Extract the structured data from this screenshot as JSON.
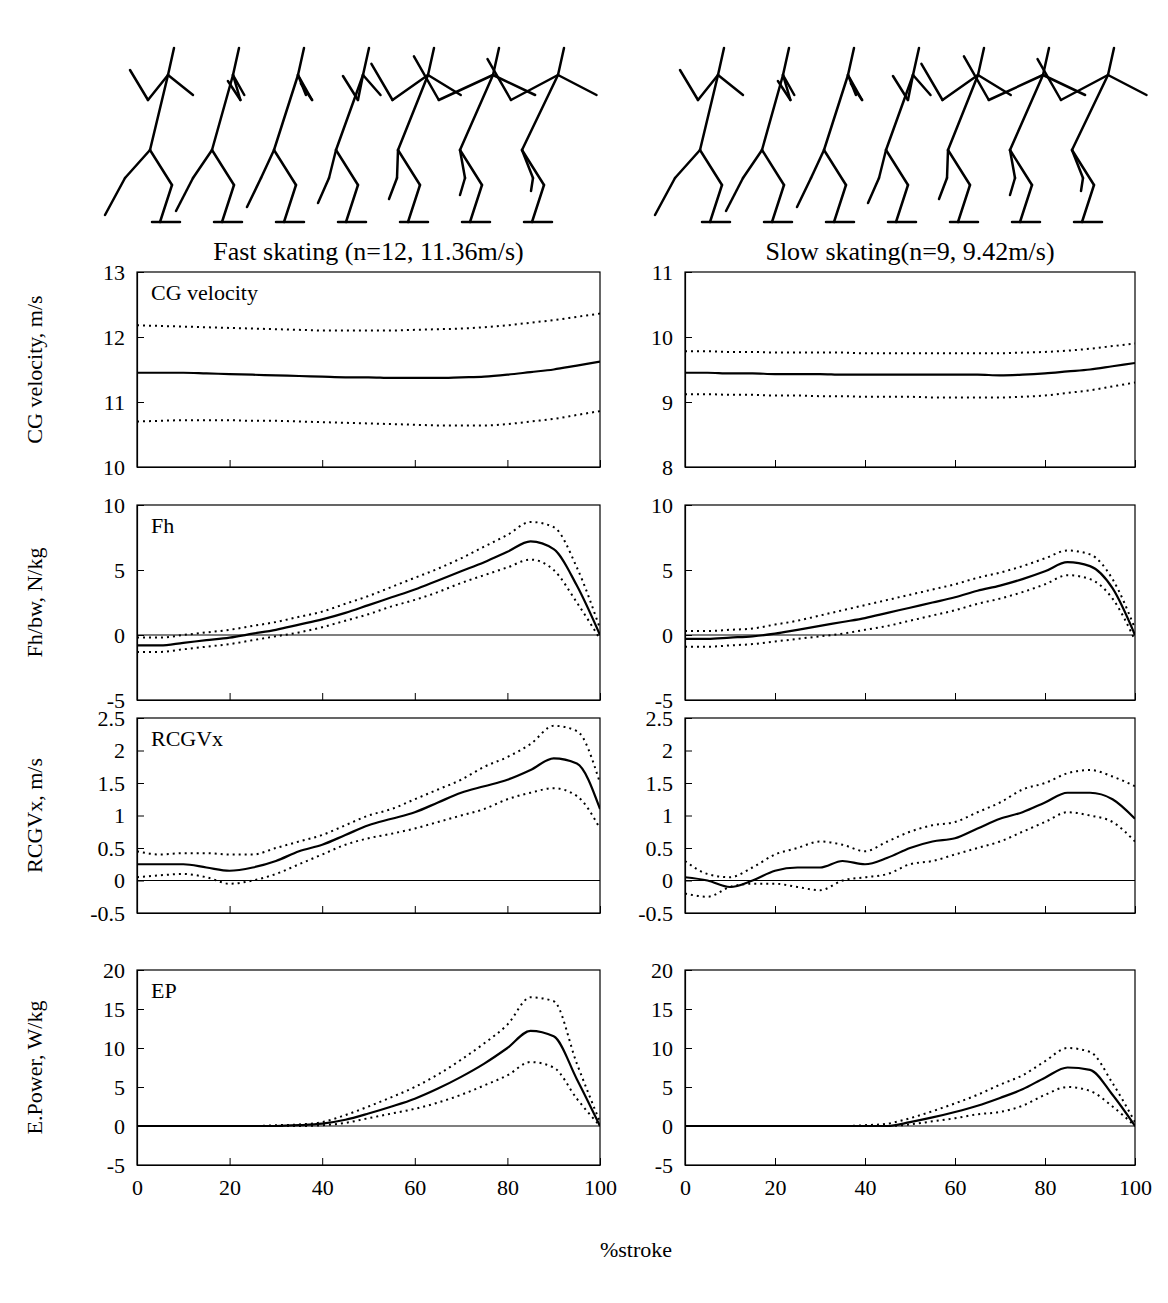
{
  "chart_data": [
    {
      "type": "line",
      "title": "Fast skating (n=12, 11.36m/s)",
      "ylabel": "CG velocity, m/s",
      "panel_label": "CG velocity",
      "x": [
        0,
        5,
        10,
        15,
        20,
        25,
        30,
        35,
        40,
        45,
        50,
        55,
        60,
        65,
        70,
        75,
        80,
        85,
        90,
        95,
        100
      ],
      "series": [
        {
          "color": "#000000",
          "line_style": "solid",
          "values": [
            11.45,
            11.45,
            11.45,
            11.44,
            11.43,
            11.42,
            11.41,
            11.4,
            11.39,
            11.38,
            11.38,
            11.37,
            11.37,
            11.37,
            11.38,
            11.39,
            11.42,
            11.46,
            11.5,
            11.56,
            11.62
          ]
        },
        {
          "color": "#000000",
          "line_style": "dotted",
          "values": [
            12.18,
            12.17,
            12.16,
            12.15,
            12.14,
            12.13,
            12.12,
            12.11,
            12.1,
            12.1,
            12.1,
            12.1,
            12.11,
            12.12,
            12.13,
            12.15,
            12.18,
            12.22,
            12.26,
            12.31,
            12.36
          ]
        },
        {
          "color": "#000000",
          "line_style": "dotted",
          "values": [
            10.7,
            10.71,
            10.72,
            10.72,
            10.72,
            10.71,
            10.71,
            10.7,
            10.69,
            10.68,
            10.67,
            10.66,
            10.65,
            10.64,
            10.64,
            10.64,
            10.66,
            10.7,
            10.74,
            10.8,
            10.86
          ]
        }
      ],
      "xlim": [
        0,
        100
      ],
      "xticks": [
        0,
        20,
        40,
        60,
        80,
        100
      ],
      "ylim": [
        10,
        13
      ],
      "yticks": [
        10,
        11,
        12,
        13
      ],
      "tick_labels": "y"
    },
    {
      "type": "line",
      "title": "Slow skating(n=9, 9.42m/s)",
      "x": [
        0,
        5,
        10,
        15,
        20,
        25,
        30,
        35,
        40,
        45,
        50,
        55,
        60,
        65,
        70,
        75,
        80,
        85,
        90,
        95,
        100
      ],
      "series": [
        {
          "color": "#000000",
          "line_style": "solid",
          "values": [
            9.45,
            9.45,
            9.44,
            9.44,
            9.43,
            9.43,
            9.43,
            9.42,
            9.42,
            9.42,
            9.42,
            9.42,
            9.42,
            9.42,
            9.41,
            9.42,
            9.44,
            9.47,
            9.5,
            9.55,
            9.6
          ]
        },
        {
          "color": "#000000",
          "line_style": "dotted",
          "values": [
            9.78,
            9.78,
            9.77,
            9.77,
            9.76,
            9.76,
            9.76,
            9.76,
            9.75,
            9.75,
            9.75,
            9.75,
            9.75,
            9.75,
            9.75,
            9.76,
            9.77,
            9.79,
            9.82,
            9.86,
            9.9
          ]
        },
        {
          "color": "#000000",
          "line_style": "dotted",
          "values": [
            9.12,
            9.12,
            9.11,
            9.11,
            9.1,
            9.1,
            9.09,
            9.09,
            9.08,
            9.08,
            9.08,
            9.07,
            9.07,
            9.07,
            9.07,
            9.08,
            9.1,
            9.14,
            9.18,
            9.24,
            9.3
          ]
        }
      ],
      "xlim": [
        0,
        100
      ],
      "xticks": [
        0,
        20,
        40,
        60,
        80,
        100
      ],
      "ylim": [
        8,
        11
      ],
      "yticks": [
        8,
        9,
        10,
        11
      ],
      "tick_labels": "y"
    },
    {
      "type": "line",
      "ylabel": "Fh/bw, N/kg",
      "panel_label": "Fh",
      "x": [
        0,
        5,
        10,
        15,
        20,
        25,
        30,
        35,
        40,
        45,
        50,
        55,
        60,
        65,
        70,
        75,
        80,
        85,
        90,
        95,
        100
      ],
      "series": [
        {
          "color": "#000000",
          "line_style": "solid",
          "values": [
            -0.8,
            -0.8,
            -0.6,
            -0.4,
            -0.2,
            0.1,
            0.4,
            0.8,
            1.2,
            1.7,
            2.3,
            2.9,
            3.5,
            4.2,
            4.9,
            5.6,
            6.4,
            7.2,
            6.6,
            3.8,
            0
          ]
        },
        {
          "color": "#000000",
          "line_style": "dotted",
          "values": [
            -0.2,
            -0.2,
            0,
            0.2,
            0.4,
            0.7,
            1.0,
            1.4,
            1.8,
            2.4,
            3.0,
            3.7,
            4.4,
            5.1,
            5.9,
            6.8,
            7.7,
            8.7,
            8.3,
            5.2,
            0.5
          ]
        },
        {
          "color": "#000000",
          "line_style": "dotted",
          "values": [
            -1.3,
            -1.3,
            -1.1,
            -0.9,
            -0.7,
            -0.4,
            -0.1,
            0.2,
            0.6,
            1.1,
            1.6,
            2.2,
            2.7,
            3.3,
            4.0,
            4.6,
            5.2,
            5.8,
            5.0,
            2.5,
            -0.3
          ]
        }
      ],
      "xlim": [
        0,
        100
      ],
      "xticks": [
        0,
        20,
        40,
        60,
        80,
        100
      ],
      "ylim": [
        -5,
        10
      ],
      "yticks": [
        -5,
        0,
        5,
        10
      ],
      "tick_labels": "y"
    },
    {
      "type": "line",
      "x": [
        0,
        5,
        10,
        15,
        20,
        25,
        30,
        35,
        40,
        45,
        50,
        55,
        60,
        65,
        70,
        75,
        80,
        85,
        90,
        95,
        100
      ],
      "series": [
        {
          "color": "#000000",
          "line_style": "solid",
          "values": [
            -0.3,
            -0.3,
            -0.2,
            -0.1,
            0.1,
            0.4,
            0.7,
            1.0,
            1.3,
            1.7,
            2.1,
            2.5,
            2.9,
            3.4,
            3.8,
            4.3,
            4.9,
            5.6,
            5.3,
            3.6,
            0
          ]
        },
        {
          "color": "#000000",
          "line_style": "dotted",
          "values": [
            0.3,
            0.3,
            0.4,
            0.5,
            0.8,
            1.1,
            1.5,
            1.9,
            2.3,
            2.7,
            3.1,
            3.5,
            3.9,
            4.4,
            4.8,
            5.3,
            5.9,
            6.5,
            6.2,
            4.3,
            0.5
          ]
        },
        {
          "color": "#000000",
          "line_style": "dotted",
          "values": [
            -0.9,
            -0.9,
            -0.8,
            -0.7,
            -0.5,
            -0.3,
            -0.1,
            0.1,
            0.4,
            0.7,
            1.1,
            1.5,
            1.9,
            2.4,
            2.8,
            3.3,
            3.9,
            4.6,
            4.3,
            2.8,
            -0.4
          ]
        }
      ],
      "xlim": [
        0,
        100
      ],
      "xticks": [
        0,
        20,
        40,
        60,
        80,
        100
      ],
      "ylim": [
        -5,
        10
      ],
      "yticks": [
        -5,
        0,
        5,
        10
      ],
      "tick_labels": "y"
    },
    {
      "type": "line",
      "ylabel": "RCGVx, m/s",
      "panel_label": "RCGVx",
      "x": [
        0,
        5,
        10,
        15,
        20,
        25,
        30,
        35,
        40,
        45,
        50,
        55,
        60,
        65,
        70,
        75,
        80,
        85,
        90,
        95,
        100
      ],
      "series": [
        {
          "color": "#000000",
          "line_style": "solid",
          "values": [
            0.25,
            0.25,
            0.25,
            0.2,
            0.15,
            0.2,
            0.3,
            0.45,
            0.55,
            0.7,
            0.85,
            0.95,
            1.05,
            1.2,
            1.35,
            1.45,
            1.55,
            1.7,
            1.88,
            1.8,
            1.1
          ]
        },
        {
          "color": "#000000",
          "line_style": "dotted",
          "values": [
            0.45,
            0.4,
            0.42,
            0.42,
            0.4,
            0.4,
            0.5,
            0.6,
            0.7,
            0.85,
            1.0,
            1.1,
            1.25,
            1.4,
            1.55,
            1.75,
            1.9,
            2.1,
            2.38,
            2.3,
            1.5
          ]
        },
        {
          "color": "#000000",
          "line_style": "dotted",
          "values": [
            0.05,
            0.08,
            0.1,
            0.05,
            -0.05,
            0,
            0.1,
            0.25,
            0.4,
            0.55,
            0.65,
            0.72,
            0.8,
            0.9,
            1.0,
            1.1,
            1.25,
            1.35,
            1.42,
            1.3,
            0.8
          ]
        }
      ],
      "xlim": [
        0,
        100
      ],
      "xticks": [
        0,
        20,
        40,
        60,
        80,
        100
      ],
      "ylim": [
        -0.5,
        2.5
      ],
      "yticks": [
        -0.5,
        0,
        0.5,
        1,
        1.5,
        2,
        2.5
      ],
      "tick_labels": "y"
    },
    {
      "type": "line",
      "x": [
        0,
        5,
        10,
        15,
        20,
        25,
        30,
        35,
        40,
        45,
        50,
        55,
        60,
        65,
        70,
        75,
        80,
        85,
        90,
        95,
        100
      ],
      "series": [
        {
          "color": "#000000",
          "line_style": "solid",
          "values": [
            0.05,
            0,
            -0.1,
            0,
            0.15,
            0.2,
            0.2,
            0.3,
            0.25,
            0.35,
            0.5,
            0.6,
            0.65,
            0.8,
            0.95,
            1.05,
            1.2,
            1.35,
            1.35,
            1.25,
            0.95
          ]
        },
        {
          "color": "#000000",
          "line_style": "dotted",
          "values": [
            0.3,
            0.1,
            0.05,
            0.2,
            0.4,
            0.5,
            0.6,
            0.55,
            0.45,
            0.6,
            0.75,
            0.85,
            0.9,
            1.05,
            1.2,
            1.4,
            1.5,
            1.65,
            1.7,
            1.6,
            1.45
          ]
        },
        {
          "color": "#000000",
          "line_style": "dotted",
          "values": [
            -0.2,
            -0.25,
            -0.1,
            -0.05,
            -0.05,
            -0.1,
            -0.15,
            0,
            0.05,
            0.1,
            0.25,
            0.3,
            0.4,
            0.5,
            0.6,
            0.75,
            0.9,
            1.05,
            1.0,
            0.9,
            0.6
          ]
        }
      ],
      "xlim": [
        0,
        100
      ],
      "xticks": [
        0,
        20,
        40,
        60,
        80,
        100
      ],
      "ylim": [
        -0.5,
        2.5
      ],
      "yticks": [
        -0.5,
        0,
        0.5,
        1,
        1.5,
        2,
        2.5
      ],
      "tick_labels": "y"
    },
    {
      "type": "line",
      "ylabel": "E.Power, W/kg",
      "panel_label": "EP",
      "xlabel": "%stroke",
      "x": [
        0,
        5,
        10,
        15,
        20,
        25,
        30,
        35,
        40,
        45,
        50,
        55,
        60,
        65,
        70,
        75,
        80,
        85,
        90,
        95,
        100
      ],
      "series": [
        {
          "color": "#000000",
          "line_style": "solid",
          "values": [
            0,
            0,
            0,
            0,
            0,
            0,
            0,
            0.1,
            0.3,
            0.8,
            1.6,
            2.5,
            3.5,
            4.8,
            6.3,
            8.0,
            10.0,
            12.2,
            11.5,
            6.0,
            0
          ]
        },
        {
          "color": "#000000",
          "line_style": "dotted",
          "values": [
            0,
            0,
            0,
            0,
            0,
            0,
            0.1,
            0.2,
            0.5,
            1.4,
            2.5,
            3.7,
            5.0,
            6.6,
            8.5,
            10.6,
            13.0,
            16.5,
            16.0,
            8.0,
            0.5
          ]
        },
        {
          "color": "#000000",
          "line_style": "dotted",
          "values": [
            0,
            0,
            0,
            0,
            0,
            0,
            0,
            0,
            0.1,
            0.4,
            1.0,
            1.6,
            2.2,
            3.0,
            4.0,
            5.2,
            6.5,
            8.2,
            7.5,
            3.5,
            0
          ]
        }
      ],
      "xlim": [
        0,
        100
      ],
      "xticks": [
        0,
        20,
        40,
        60,
        80,
        100
      ],
      "ylim": [
        -5,
        20
      ],
      "yticks": [
        -5,
        0,
        5,
        10,
        15,
        20
      ]
    },
    {
      "type": "line",
      "x": [
        0,
        5,
        10,
        15,
        20,
        25,
        30,
        35,
        40,
        45,
        50,
        55,
        60,
        65,
        70,
        75,
        80,
        85,
        90,
        95,
        100
      ],
      "series": [
        {
          "color": "#000000",
          "line_style": "solid",
          "values": [
            0,
            0,
            0,
            0,
            0,
            0,
            0,
            0,
            0,
            0,
            0.5,
            1.1,
            1.8,
            2.6,
            3.6,
            4.7,
            6.2,
            7.5,
            7.2,
            4.0,
            0
          ]
        },
        {
          "color": "#000000",
          "line_style": "dotted",
          "values": [
            0,
            0,
            0,
            0,
            0,
            0,
            0,
            0,
            0.1,
            0.3,
            1.0,
            1.9,
            2.9,
            4.0,
            5.3,
            6.5,
            8.3,
            10.0,
            9.5,
            5.5,
            0.5
          ]
        },
        {
          "color": "#000000",
          "line_style": "dotted",
          "values": [
            0,
            0,
            0,
            0,
            0,
            0,
            0,
            0,
            0,
            0,
            0.2,
            0.6,
            1.0,
            1.5,
            1.8,
            2.6,
            4.0,
            5.0,
            4.5,
            2.5,
            0
          ]
        }
      ],
      "xlim": [
        0,
        100
      ],
      "xticks": [
        0,
        20,
        40,
        60,
        80,
        100
      ],
      "ylim": [
        -5,
        20
      ],
      "yticks": [
        -5,
        0,
        5,
        10,
        15,
        20
      ]
    }
  ]
}
